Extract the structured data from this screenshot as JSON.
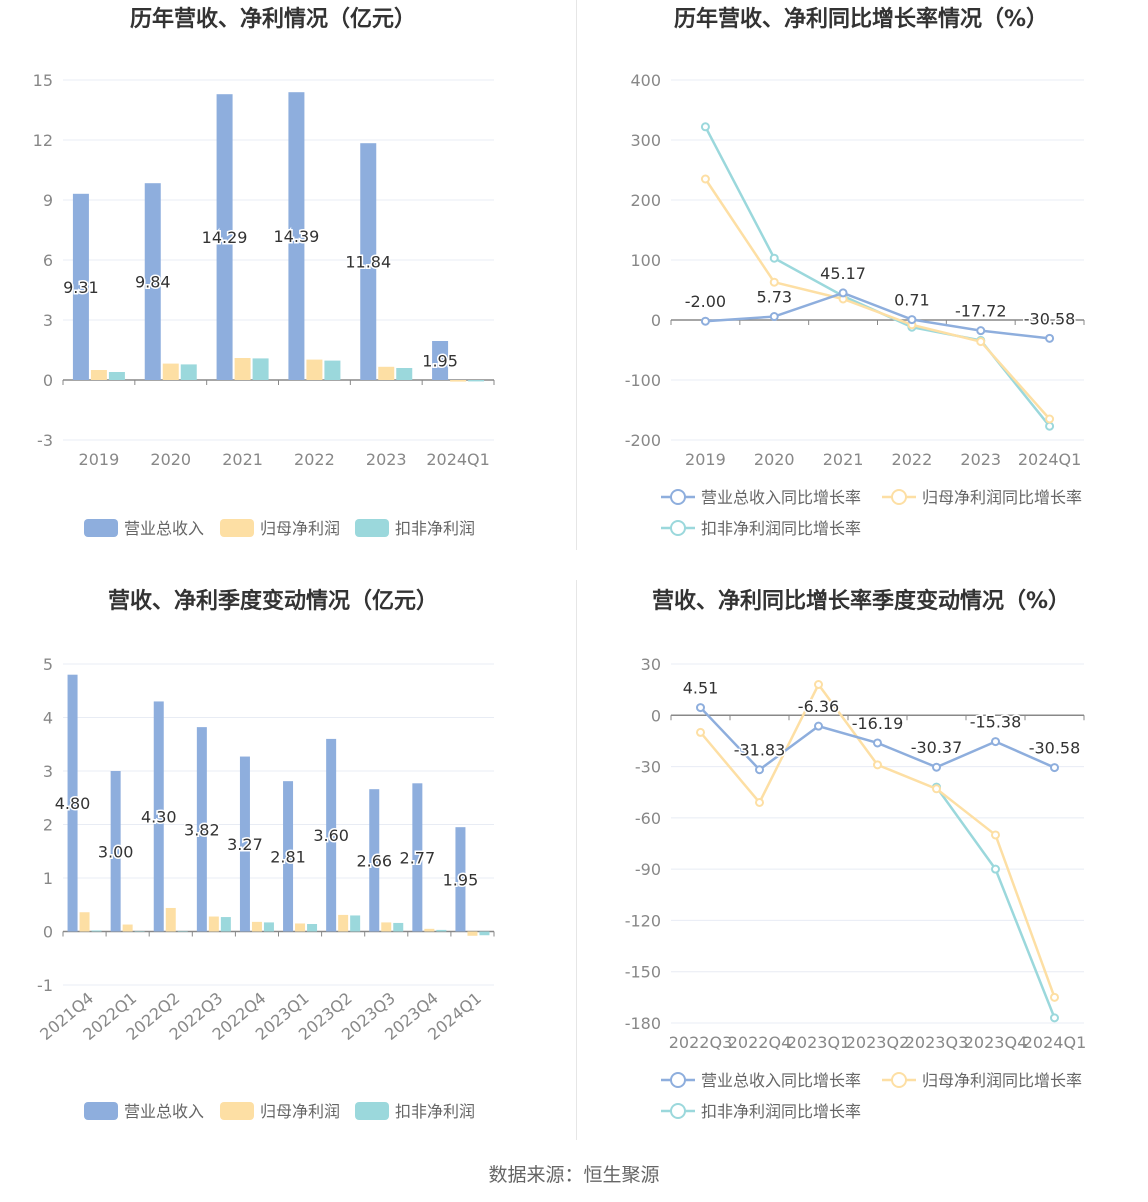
{
  "source": "数据来源：恒生聚源",
  "colors": {
    "revenue": "#8eaedd",
    "net": "#fddfa4",
    "deducted": "#9bd8dc"
  },
  "chart_data": [
    {
      "type": "bar",
      "title": "历年营收、净利情况（亿元）",
      "categories": [
        "2019",
        "2020",
        "2021",
        "2022",
        "2023",
        "2024Q1"
      ],
      "ylim": [
        -3,
        15
      ],
      "yticks": [
        -3,
        0,
        3,
        6,
        9,
        12,
        15
      ],
      "series": [
        {
          "name": "营业总收入",
          "color": "#8eaedd",
          "values": [
            9.31,
            9.84,
            14.29,
            14.39,
            11.84,
            1.95
          ],
          "labels": [
            "9.31",
            "9.84",
            "14.29",
            "14.39",
            "11.84",
            "1.95"
          ]
        },
        {
          "name": "归母净利润",
          "color": "#fddfa4",
          "values": [
            0.5,
            0.82,
            1.1,
            1.02,
            0.66,
            -0.08
          ]
        },
        {
          "name": "扣非净利润",
          "color": "#9bd8dc",
          "values": [
            0.4,
            0.78,
            1.08,
            0.97,
            0.6,
            -0.07
          ]
        }
      ],
      "legend": "bottom"
    },
    {
      "type": "line",
      "title": "历年营收、净利同比增长率情况（%）",
      "categories": [
        "2019",
        "2020",
        "2021",
        "2022",
        "2023",
        "2024Q1"
      ],
      "ylim": [
        -200,
        400
      ],
      "yticks": [
        -200,
        -100,
        0,
        100,
        200,
        300,
        400
      ],
      "series": [
        {
          "name": "营业总收入同比增长率",
          "color": "#8eaedd",
          "values": [
            -2.0,
            5.73,
            45.17,
            0.71,
            -17.72,
            -30.58
          ],
          "labels": [
            "-2.00",
            "5.73",
            "45.17",
            "0.71",
            "-17.72",
            "-30.58"
          ]
        },
        {
          "name": "归母净利润同比增长率",
          "color": "#fddfa4",
          "values": [
            235,
            63,
            35,
            -8,
            -36,
            -165
          ]
        },
        {
          "name": "扣非净利润同比增长率",
          "color": "#9bd8dc",
          "values": [
            322,
            103,
            40,
            -12,
            -34,
            -177
          ]
        }
      ],
      "legend": "bottom"
    },
    {
      "type": "bar",
      "title": "营收、净利季度变动情况（亿元）",
      "categories": [
        "2021Q4",
        "2022Q1",
        "2022Q2",
        "2022Q3",
        "2022Q4",
        "2023Q1",
        "2023Q2",
        "2023Q3",
        "2023Q4",
        "2024Q1"
      ],
      "ylim": [
        -1,
        5
      ],
      "yticks": [
        -1,
        0,
        1,
        2,
        3,
        4,
        5
      ],
      "series": [
        {
          "name": "营业总收入",
          "color": "#8eaedd",
          "values": [
            4.8,
            3.0,
            4.3,
            3.82,
            3.27,
            2.81,
            3.6,
            2.66,
            2.77,
            1.95
          ],
          "labels": [
            "4.80",
            "3.00",
            "4.30",
            "3.82",
            "3.27",
            "2.81",
            "3.60",
            "2.66",
            "2.77",
            "1.95"
          ]
        },
        {
          "name": "归母净利润",
          "color": "#fddfa4",
          "values": [
            0.36,
            0.13,
            0.44,
            0.28,
            0.18,
            0.15,
            0.31,
            0.17,
            0.05,
            -0.08
          ]
        },
        {
          "name": "扣非净利润",
          "color": "#9bd8dc",
          "values": [
            0.02,
            0.0,
            0.01,
            0.27,
            0.17,
            0.14,
            0.3,
            0.16,
            0.03,
            -0.07
          ]
        }
      ],
      "legend": "bottom"
    },
    {
      "type": "line",
      "title": "营收、净利同比增长率季度变动情况（%）",
      "categories": [
        "2022Q3",
        "2022Q4",
        "2023Q1",
        "2023Q2",
        "2023Q3",
        "2023Q4",
        "2024Q1"
      ],
      "ylim": [
        -180,
        30
      ],
      "yticks": [
        -180,
        -150,
        -120,
        -90,
        -60,
        -30,
        0,
        30
      ],
      "series": [
        {
          "name": "营业总收入同比增长率",
          "color": "#8eaedd",
          "values": [
            4.51,
            -31.83,
            -6.36,
            -16.19,
            -30.37,
            -15.38,
            -30.58
          ],
          "labels": [
            "4.51",
            "-31.83",
            "-6.36",
            "-16.19",
            "-30.37",
            "-15.38",
            "-30.58"
          ]
        },
        {
          "name": "归母净利润同比增长率",
          "color": "#fddfa4",
          "values": [
            -10,
            -51,
            18,
            -29,
            -43,
            -70,
            -165
          ]
        },
        {
          "name": "扣非净利润同比增长率",
          "color": "#9bd8dc",
          "values": [
            null,
            null,
            null,
            null,
            -42,
            -90,
            -177
          ]
        }
      ],
      "legend": "bottom"
    }
  ]
}
